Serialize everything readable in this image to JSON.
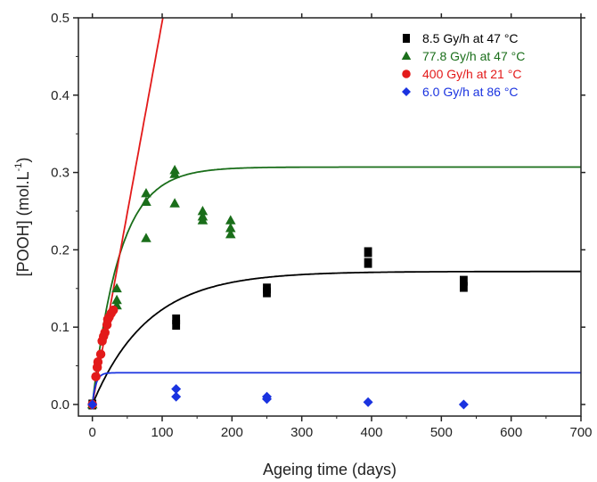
{
  "chart_data": {
    "type": "scatter",
    "title": "",
    "xlabel": "Ageing time (days)",
    "ylabel_main": "[POOH] (mol.L",
    "ylabel_sup": "-1",
    "ylabel_close": ")",
    "xlim": [
      -20,
      700
    ],
    "ylim": [
      -0.015,
      0.5
    ],
    "x_ticks": [
      0,
      100,
      200,
      300,
      400,
      500,
      600,
      700
    ],
    "y_ticks": [
      0.0,
      0.1,
      0.2,
      0.3,
      0.4,
      0.5
    ],
    "x_tick_labels": [
      "0",
      "100",
      "200",
      "300",
      "400",
      "500",
      "600",
      "700"
    ],
    "y_tick_labels": [
      "0.0",
      "0.1",
      "0.2",
      "0.3",
      "0.4",
      "0.5"
    ],
    "grid": false,
    "legend_position": "top-right",
    "series": [
      {
        "name": "8.5 Gy/h at 47 °C",
        "marker": "square",
        "color": "#000000",
        "points": [
          [
            0,
            0.0
          ],
          [
            120,
            0.103
          ],
          [
            120,
            0.11
          ],
          [
            250,
            0.145
          ],
          [
            250,
            0.15
          ],
          [
            395,
            0.183
          ],
          [
            395,
            0.197
          ],
          [
            532,
            0.152
          ],
          [
            532,
            0.16
          ]
        ],
        "model": {
          "type": "saturation",
          "plateau": 0.172,
          "k": 0.0125
        }
      },
      {
        "name": "77.8 Gy/h at 47 °C",
        "marker": "triangle",
        "color": "#1a6e1a",
        "points": [
          [
            0,
            0.0
          ],
          [
            35,
            0.128
          ],
          [
            35,
            0.135
          ],
          [
            35,
            0.15
          ],
          [
            77,
            0.215
          ],
          [
            77,
            0.262
          ],
          [
            77,
            0.273
          ],
          [
            118,
            0.26
          ],
          [
            118,
            0.298
          ],
          [
            118,
            0.303
          ],
          [
            158,
            0.238
          ],
          [
            158,
            0.243
          ],
          [
            158,
            0.25
          ],
          [
            198,
            0.22
          ],
          [
            198,
            0.228
          ],
          [
            198,
            0.238
          ]
        ],
        "model": {
          "type": "saturation",
          "plateau": 0.307,
          "k": 0.0255
        }
      },
      {
        "name": "400 Gy/h at 21 °C",
        "marker": "circle",
        "color": "#e31a1a",
        "points": [
          [
            0,
            0.0
          ],
          [
            5,
            0.036
          ],
          [
            7,
            0.048
          ],
          [
            8,
            0.055
          ],
          [
            12,
            0.065
          ],
          [
            14,
            0.082
          ],
          [
            16,
            0.088
          ],
          [
            18,
            0.093
          ],
          [
            21,
            0.103
          ],
          [
            22,
            0.11
          ],
          [
            24,
            0.113
          ],
          [
            27,
            0.118
          ],
          [
            30,
            0.122
          ]
        ],
        "model": {
          "type": "linear",
          "slope": 0.00495
        }
      },
      {
        "name": "6.0 Gy/h at 86 °C",
        "marker": "diamond",
        "color": "#1a33e0",
        "points": [
          [
            0,
            0.0
          ],
          [
            120,
            0.01
          ],
          [
            120,
            0.02
          ],
          [
            250,
            0.007
          ],
          [
            250,
            0.01
          ],
          [
            395,
            0.003
          ],
          [
            532,
            0.0
          ]
        ],
        "model": {
          "type": "saturation",
          "plateau": 0.041,
          "k": 0.2
        }
      }
    ]
  }
}
